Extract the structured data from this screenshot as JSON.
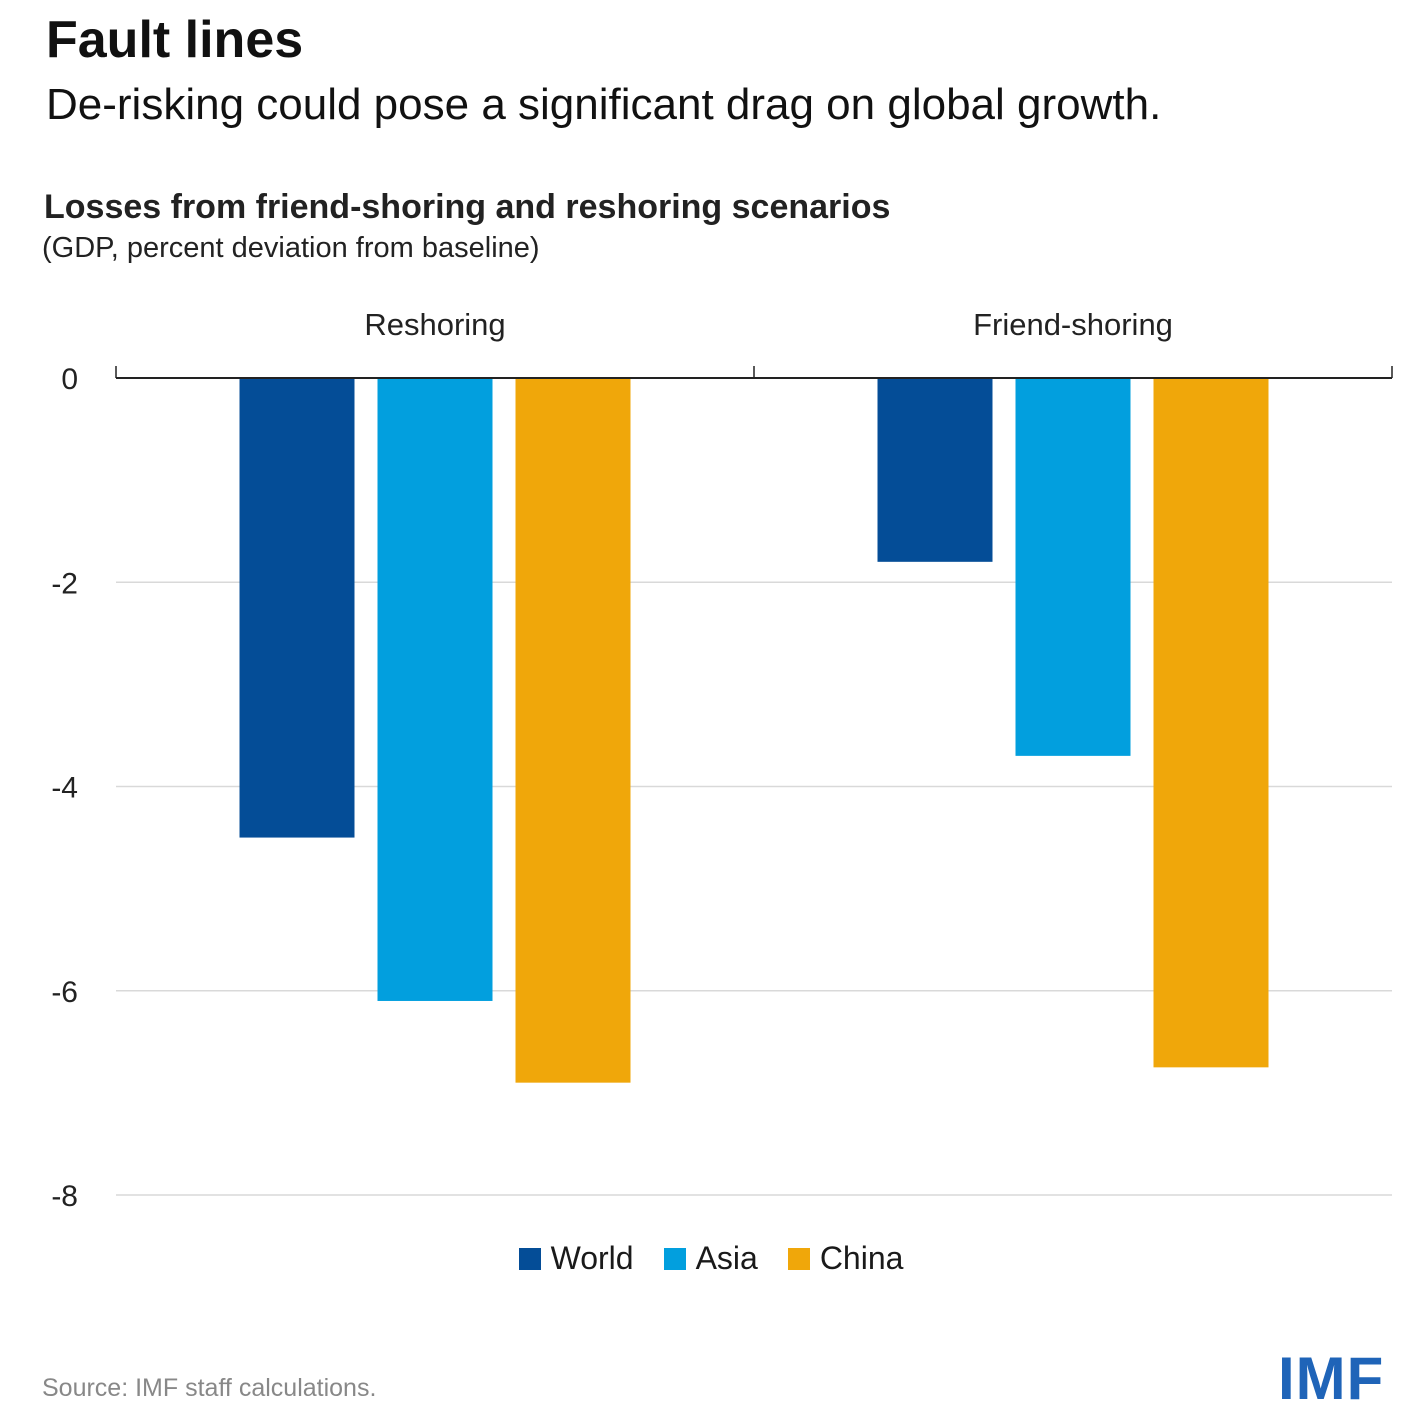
{
  "header": {
    "title": "Fault lines",
    "subtitle": "De-risking could pose a significant drag on global growth."
  },
  "chart_data": {
    "type": "bar",
    "title": "Losses from friend-shoring and reshoring scenarios",
    "subtitle": "(GDP, percent deviation from baseline)",
    "categories": [
      "Reshoring",
      "Friend-shoring"
    ],
    "series": [
      {
        "name": "World",
        "color": "#044d97",
        "values": [
          -4.5,
          -1.8
        ]
      },
      {
        "name": "Asia",
        "color": "#029fde",
        "values": [
          -6.1,
          -3.7
        ]
      },
      {
        "name": "China",
        "color": "#f0a70a",
        "values": [
          -6.9,
          -6.75
        ]
      }
    ],
    "ylim": [
      -8,
      0
    ],
    "yticks": [
      0,
      -2,
      -4,
      -6,
      -8
    ],
    "grid": true,
    "legend_position": "bottom"
  },
  "footer": {
    "source": "Source: IMF staff calculations.",
    "logo_text": "IMF"
  }
}
